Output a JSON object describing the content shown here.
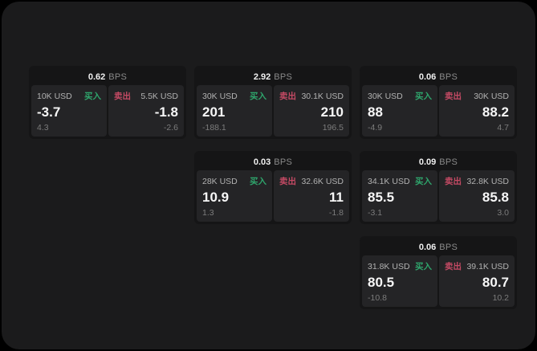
{
  "labels": {
    "bps": "BPS",
    "buy": "买入",
    "sell": "卖出"
  },
  "colors": {
    "background": "#000000",
    "panel": "#1b1b1c",
    "card": "#151516",
    "side_panel": "#242426",
    "buy_green": "#2fa56c",
    "sell_red": "#c44a64",
    "value_white": "#f7f7f7",
    "muted_gray": "#8a8a8a"
  },
  "cards": [
    {
      "bps": "0.62",
      "buy": {
        "notional": "10K USD",
        "value": "-3.7",
        "sub": "4.3"
      },
      "sell": {
        "notional": "5.5K USD",
        "value": "-1.8",
        "sub": "-2.6"
      }
    },
    {
      "bps": "2.92",
      "buy": {
        "notional": "30K USD",
        "value": "201",
        "sub": "-188.1"
      },
      "sell": {
        "notional": "30.1K USD",
        "value": "210",
        "sub": "196.5"
      }
    },
    {
      "bps": "0.03",
      "buy": {
        "notional": "28K USD",
        "value": "10.9",
        "sub": "1.3"
      },
      "sell": {
        "notional": "32.6K USD",
        "value": "11",
        "sub": "-1.8"
      }
    },
    {
      "bps": "0.06",
      "buy": {
        "notional": "30K USD",
        "value": "88",
        "sub": "-4.9"
      },
      "sell": {
        "notional": "30K USD",
        "value": "88.2",
        "sub": "4.7"
      }
    },
    {
      "bps": "0.09",
      "buy": {
        "notional": "34.1K USD",
        "value": "85.5",
        "sub": "-3.1"
      },
      "sell": {
        "notional": "32.8K USD",
        "value": "85.8",
        "sub": "3.0"
      }
    },
    {
      "bps": "0.06",
      "buy": {
        "notional": "31.8K USD",
        "value": "80.5",
        "sub": "-10.8"
      },
      "sell": {
        "notional": "39.1K USD",
        "value": "80.7",
        "sub": "10.2"
      }
    }
  ]
}
